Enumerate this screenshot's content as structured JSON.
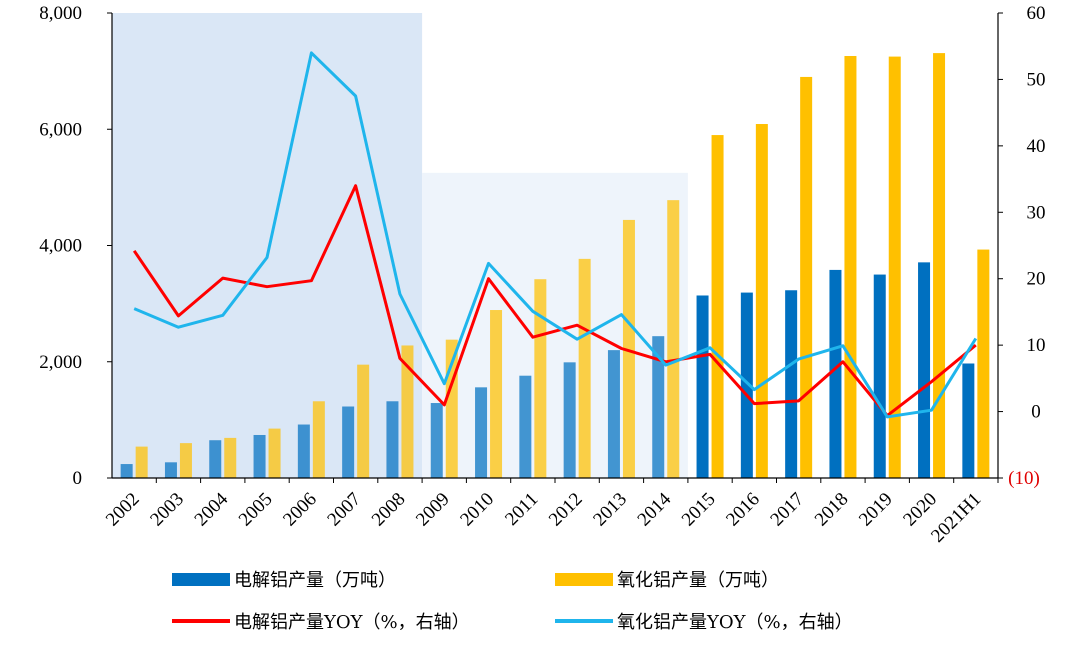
{
  "chart_data": {
    "type": "bar+line",
    "categories": [
      "2002",
      "2003",
      "2004",
      "2005",
      "2006",
      "2007",
      "2008",
      "2009",
      "2010",
      "2011",
      "2012",
      "2013",
      "2014",
      "2015",
      "2016",
      "2017",
      "2018",
      "2019",
      "2020",
      "2021H1"
    ],
    "series": [
      {
        "name": "电解铝产量（万吨）",
        "type": "bar",
        "axis": "left",
        "color": "#0070c0",
        "values": [
          240,
          270,
          650,
          740,
          920,
          1230,
          1320,
          1290,
          1560,
          1760,
          1990,
          2200,
          2440,
          3140,
          3190,
          3230,
          3580,
          3500,
          3710,
          1970
        ]
      },
      {
        "name": "氧化铝产量（万吨）",
        "type": "bar",
        "axis": "left",
        "color": "#ffc000",
        "values": [
          540,
          600,
          690,
          850,
          1320,
          1950,
          2280,
          2380,
          2890,
          3420,
          3770,
          4440,
          4780,
          5900,
          6090,
          6900,
          7260,
          7250,
          7310,
          3930
        ]
      },
      {
        "name": "电解铝产量YOY（%，右轴）",
        "type": "line",
        "axis": "right",
        "color": "#ff0000",
        "values": [
          24.2,
          14.4,
          20.1,
          18.8,
          19.7,
          34.0,
          8.0,
          1.0,
          20.0,
          11.2,
          13.0,
          9.5,
          7.5,
          8.6,
          1.2,
          1.6,
          7.5,
          -0.6,
          4.5,
          10.0
        ]
      },
      {
        "name": "氧化铝产量YOY（%，右轴）",
        "type": "line",
        "axis": "right",
        "color": "#1fb5ec",
        "values": [
          15.5,
          12.7,
          14.5,
          23.2,
          54.0,
          47.5,
          17.7,
          4.2,
          22.3,
          15.1,
          10.9,
          14.6,
          7.0,
          9.6,
          3.3,
          7.9,
          9.9,
          -0.8,
          0.2,
          11.0
        ]
      }
    ],
    "y_left": {
      "ylim": [
        0,
        8000
      ],
      "ticks": [
        "0",
        "2,000",
        "4,000",
        "6,000",
        "8,000"
      ]
    },
    "y_right": {
      "ylim": [
        -10,
        60
      ],
      "ticks": [
        "(10)",
        "0",
        "10",
        "20",
        "30",
        "40",
        "50",
        "60"
      ],
      "negative_tick_color": "#e00000"
    },
    "shaded_regions": [
      {
        "from": "2002",
        "to": "2008",
        "top": 8000,
        "color": "#dae7f6"
      },
      {
        "from": "2009",
        "to": "2014",
        "top": 5250,
        "color": "#eef4fb"
      }
    ],
    "grid": false,
    "legend_position": "bottom"
  }
}
